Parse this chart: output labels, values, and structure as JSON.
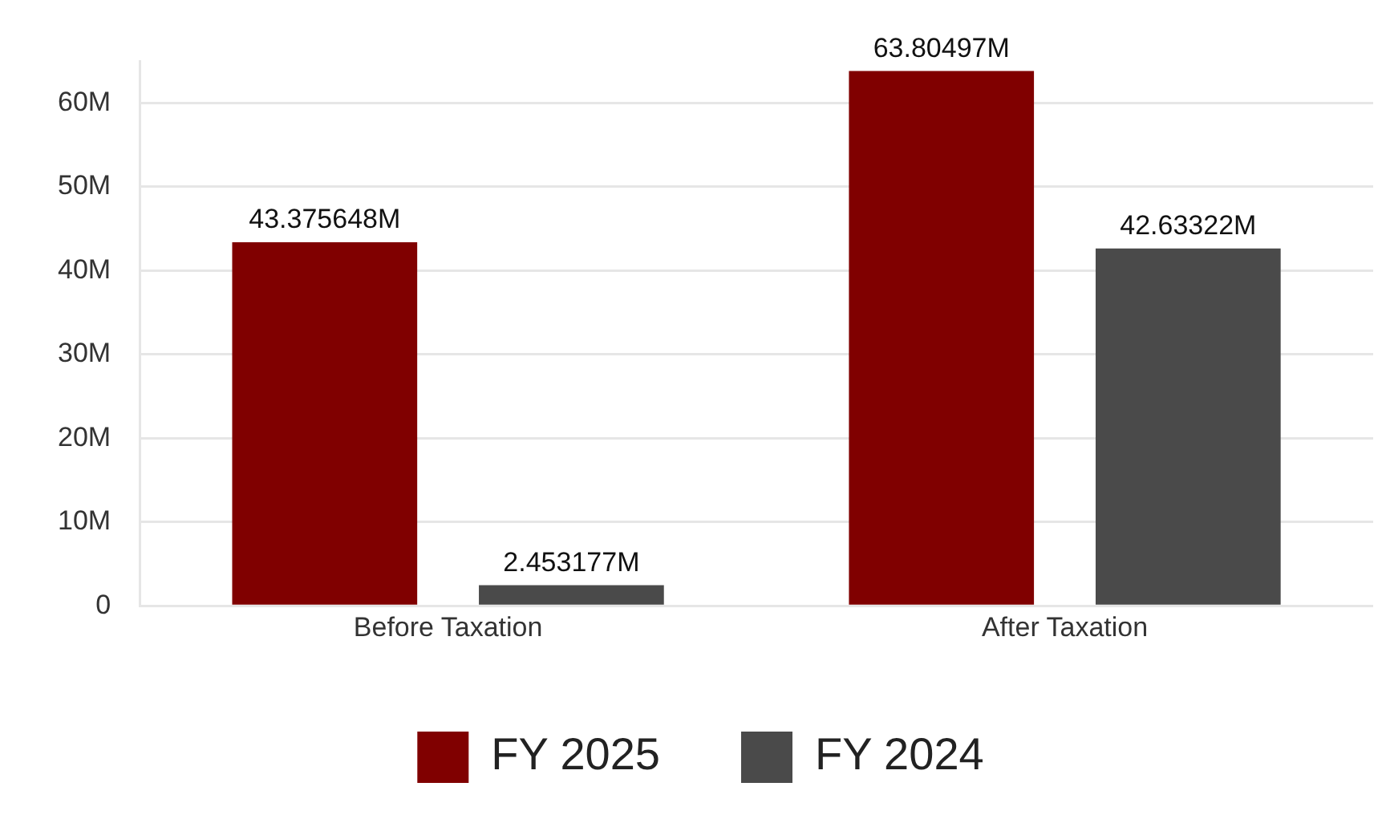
{
  "chart_data": {
    "type": "bar",
    "categories": [
      "Before Taxation",
      "After Taxation"
    ],
    "series": [
      {
        "name": "FY 2025",
        "color": "#800000",
        "values": [
          43.375648,
          63.80497
        ],
        "value_labels": [
          "43.375648M",
          "63.80497M"
        ]
      },
      {
        "name": "FY 2024",
        "color": "#4a4a4a",
        "values": [
          2.453177,
          42.63322
        ],
        "value_labels": [
          "2.453177M",
          "42.63322M"
        ]
      }
    ],
    "ylim": [
      0,
      65
    ],
    "yticks": [
      {
        "value": 0,
        "label": "0"
      },
      {
        "value": 10,
        "label": "10M"
      },
      {
        "value": 20,
        "label": "20M"
      },
      {
        "value": 30,
        "label": "30M"
      },
      {
        "value": 40,
        "label": "40M"
      },
      {
        "value": 50,
        "label": "50M"
      },
      {
        "value": 60,
        "label": "60M"
      }
    ],
    "grid": "y",
    "legend": "bottom"
  }
}
